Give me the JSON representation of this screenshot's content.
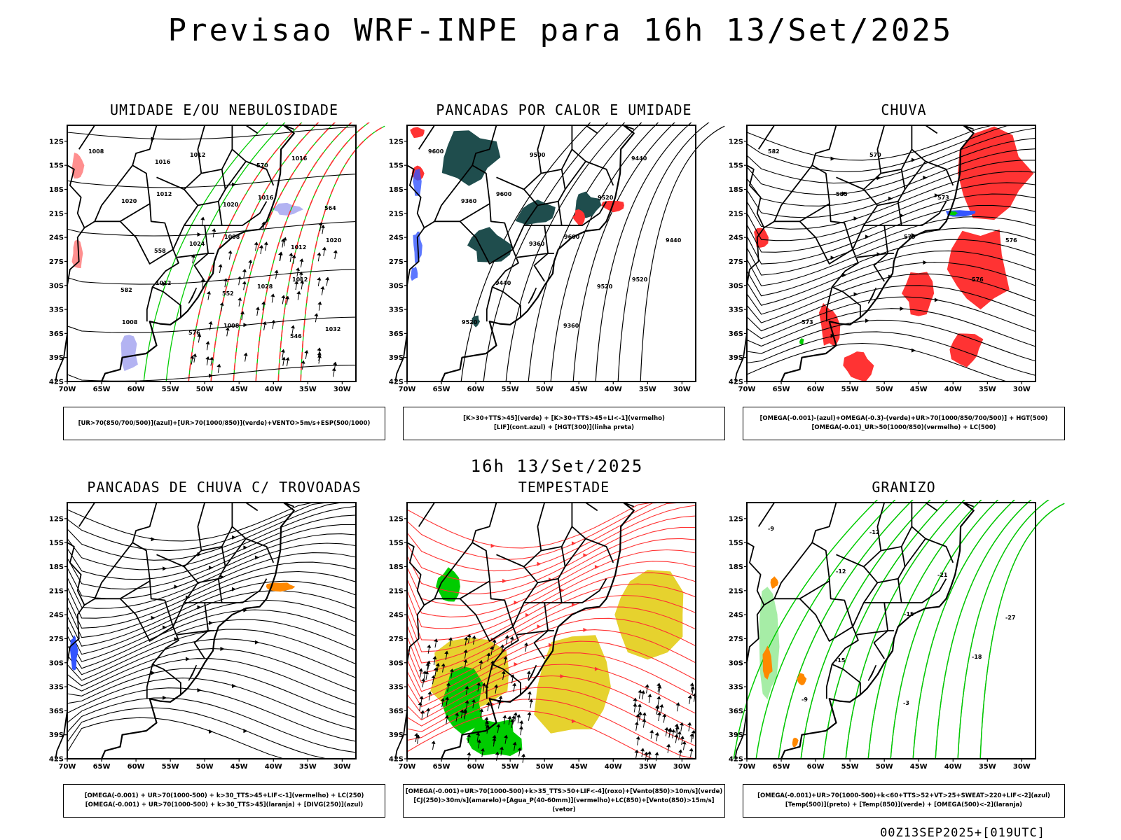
{
  "title": "Previsao WRF-INPE  para 16h 13/Set/2025",
  "mid_title": "16h 13/Set/2025",
  "footer": "00Z13SEP2025+[019UTC]",
  "axes": {
    "lat_ticks": [
      "12S",
      "15S",
      "18S",
      "21S",
      "24S",
      "27S",
      "30S",
      "33S",
      "36S",
      "39S",
      "42S"
    ],
    "lon_ticks": [
      "70W",
      "65W",
      "60W",
      "55W",
      "50W",
      "45W",
      "40W",
      "35W",
      "30W"
    ]
  },
  "colors": {
    "green": "#00cc00",
    "red": "#ff3333",
    "blue": "#3355ff",
    "lavender": "#b3b3f2",
    "darkteal": "#1f4d4d",
    "yellow": "#e6d22e",
    "orange": "#ff8800"
  },
  "panels": [
    {
      "title": "UMIDADE E/OU NEBULOSIDADE",
      "legend": [
        "[UR>70(850/700/500)](azul)+[UR>70(1000/850)](verde)+VENTO>5m/s+ESP(500/1000)"
      ],
      "labels": [
        "1008",
        "1012",
        "1008",
        "1012",
        "1008",
        "1012",
        "1016",
        "1020",
        "1012",
        "1008",
        "1016",
        "1020",
        "1024",
        "1028",
        "1032",
        "1016",
        "1020",
        "1012",
        "582",
        "576",
        "570",
        "564",
        "558",
        "552",
        "546"
      ]
    },
    {
      "title": "PANCADAS POR CALOR E UMIDADE",
      "legend": [
        "[K>30+TTS>45](verde) + [K>30+TTS>45+LI<-1](vermelho)",
        "[LIF](cont.azul) + [HGT(300)](linha preta)"
      ],
      "labels": [
        "9600",
        "9600",
        "9600",
        "9520",
        "9520",
        "9500",
        "9520",
        "9440",
        "9440",
        "9360",
        "9440",
        "9360",
        "9360",
        "9520"
      ]
    },
    {
      "title": "CHUVA",
      "legend": [
        "[OMEGA(-0.001)-(azul)+OMEGA(-0.3)-(verde)+UR>70(1000/850/700/500)] + HGT(500)",
        "[OMEGA(-0.01)_UR>50(1000/850)(vermelho) + LC(500)"
      ],
      "labels": [
        "582",
        "585",
        "579",
        "576",
        "573",
        "570",
        "573",
        "576"
      ]
    },
    {
      "title": "PANCADAS DE CHUVA C/ TROVOADAS",
      "legend": [
        "[OMEGA(-0.001) + UR>70(1000-500) + k>30_TTS>45+LIF<-1](vermelho) + LC(250)",
        "[OMEGA(-0.001) + UR>70(1000-500) + k>30_TTS>45](laranja) + [DIVG(250)](azul)"
      ],
      "labels": []
    },
    {
      "title": "TEMPESTADE",
      "legend": [
        "[OMEGA(-0.001)+UR>70(1000-500)+k>35_TTS>50+LIF<-4](roxo)+[Vento(850)>10m/s](verde)",
        "[CJ(250)>30m/s](amarelo)+[Agua_P(40-60mm)](vermelho)+LC(850)+[Vento(850)>15m/s](vetor)"
      ],
      "labels": []
    },
    {
      "title": "GRANIZO",
      "legend": [
        "[OMEGA(-0.001)+UR>70(1000-500)+k<60+TTS>52+VT>25+SWEAT>220+LIF<-2](azul)",
        "[Temp(500)](preto) + [Temp(850)](verde) + [OMEGA(500)<-2](laranja)"
      ],
      "labels": [
        "-9",
        "-12",
        "-15",
        "-18",
        "-9",
        "-12",
        "-21",
        "-27",
        "-15",
        "-3"
      ]
    }
  ]
}
